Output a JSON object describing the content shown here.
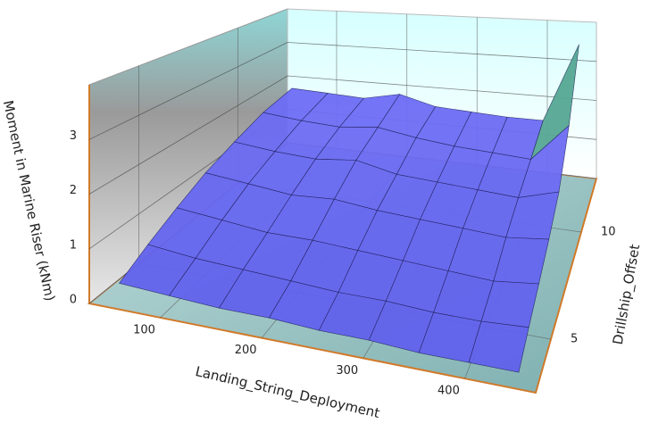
{
  "chart_data": {
    "type": "surface",
    "x_label": "Landing_String_Deployment",
    "y_label": "Drillship_Offset",
    "z_label": "Moment in Marine Riser (kNm)",
    "x": [
      50,
      100,
      150,
      200,
      250,
      300,
      350,
      400,
      450
    ],
    "y": [
      3,
      4.5,
      6,
      7.5,
      9,
      10.5,
      12
    ],
    "values": [
      [
        0.3,
        0.25,
        0.2,
        0.2,
        0.15,
        0.15,
        0.1,
        0.1,
        0.1
      ],
      [
        0.6,
        0.5,
        0.45,
        0.4,
        0.35,
        0.35,
        0.3,
        0.3,
        0.35
      ],
      [
        0.9,
        0.8,
        0.7,
        0.7,
        0.65,
        0.6,
        0.55,
        0.5,
        0.6
      ],
      [
        1.2,
        1.1,
        1.0,
        1.05,
        0.95,
        0.9,
        0.85,
        0.8,
        0.9
      ],
      [
        1.45,
        1.35,
        1.3,
        1.4,
        1.2,
        1.15,
        1.1,
        1.05,
        1.3
      ],
      [
        1.7,
        1.6,
        1.55,
        1.65,
        1.5,
        1.4,
        1.35,
        1.3,
        2.2
      ],
      [
        1.85,
        1.8,
        1.75,
        1.95,
        1.7,
        1.65,
        1.6,
        1.6,
        3.6
      ]
    ],
    "xlim": [
      30,
      470
    ],
    "ylim": [
      2.5,
      12.5
    ],
    "zlim": [
      0,
      4
    ],
    "xticks": [
      100,
      200,
      300,
      400
    ],
    "yticks": [
      5,
      10
    ],
    "zticks": [
      0,
      1,
      2,
      3
    ],
    "grid": true
  }
}
